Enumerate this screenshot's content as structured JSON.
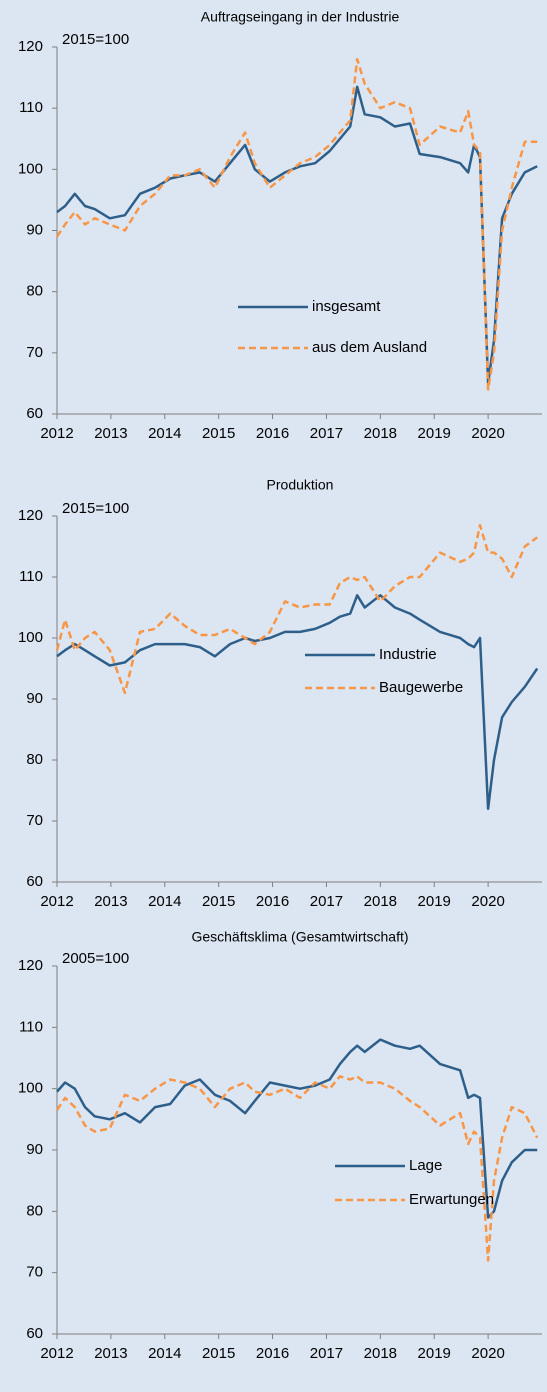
{
  "chart_data": [
    {
      "type": "line",
      "title": "Auftragseingang in der Industrie",
      "annotation": "2015=100",
      "x": [
        2012,
        2012.15,
        2012.33,
        2012.52,
        2012.7,
        2012.98,
        2013.26,
        2013.54,
        2013.82,
        2014.1,
        2014.37,
        2014.65,
        2014.93,
        2015.21,
        2015.49,
        2015.67,
        2015.95,
        2016.23,
        2016.51,
        2016.79,
        2017.06,
        2017.25,
        2017.44,
        2017.57,
        2017.71,
        2018,
        2018.27,
        2018.55,
        2018.73,
        2019.11,
        2019.48,
        2019.63,
        2019.74,
        2019.85,
        2020,
        2020.11,
        2020.26,
        2020.44,
        2020.68,
        2020.91
      ],
      "series": [
        {
          "name": "insgesamt",
          "color": "#2e5f8a",
          "dashed": false,
          "values": [
            93,
            94,
            96,
            94,
            93.5,
            92,
            92.5,
            96,
            97,
            98.5,
            99,
            99.5,
            98,
            101,
            104,
            100,
            98,
            99.5,
            100.5,
            101,
            103,
            105,
            107,
            113.5,
            109,
            108.5,
            107,
            107.5,
            102.5,
            102,
            101,
            99.5,
            104,
            102,
            65,
            72,
            92,
            96,
            99.5,
            100.5
          ]
        },
        {
          "name": "aus dem Ausland",
          "color": "#f79646",
          "dashed": true,
          "values": [
            89,
            91,
            93,
            91,
            92,
            91,
            90,
            94,
            96,
            99,
            99,
            100,
            97,
            102,
            106,
            101,
            97,
            99,
            101,
            102,
            104,
            106,
            108,
            118,
            114,
            110,
            111,
            110,
            104,
            107,
            106,
            109.5,
            104,
            103,
            64,
            70,
            90,
            97,
            104.5,
            104.5
          ]
        }
      ],
      "xlim": [
        2012,
        2021
      ],
      "xticks": [
        2012,
        2013,
        2014,
        2015,
        2016,
        2017,
        2018,
        2019,
        2020
      ],
      "ylim": [
        60,
        120
      ],
      "yticks": [
        60,
        70,
        80,
        90,
        100,
        110,
        120
      ],
      "grid": false,
      "legend": "lower right"
    },
    {
      "type": "line",
      "title": "Produktion",
      "annotation": "2015=100",
      "x": [
        2012,
        2012.15,
        2012.33,
        2012.52,
        2012.7,
        2012.98,
        2013.26,
        2013.54,
        2013.82,
        2014.1,
        2014.37,
        2014.65,
        2014.93,
        2015.21,
        2015.49,
        2015.67,
        2015.95,
        2016.23,
        2016.51,
        2016.79,
        2017.06,
        2017.25,
        2017.44,
        2017.57,
        2017.71,
        2018,
        2018.27,
        2018.55,
        2018.73,
        2019.11,
        2019.48,
        2019.63,
        2019.74,
        2019.85,
        2020,
        2020.11,
        2020.26,
        2020.44,
        2020.68,
        2020.91
      ],
      "series": [
        {
          "name": "Industrie",
          "color": "#2e5f8a",
          "dashed": false,
          "values": [
            97,
            98,
            99,
            98,
            97,
            95.5,
            96,
            98,
            99,
            99,
            99,
            98.5,
            97,
            99,
            100,
            99.5,
            100,
            101,
            101,
            101.5,
            102.5,
            103.5,
            104,
            107,
            105,
            107,
            105,
            104,
            103,
            101,
            100,
            99,
            98.5,
            100,
            72,
            80,
            87,
            89.5,
            92,
            95
          ]
        },
        {
          "name": "Baugewerbe",
          "color": "#f79646",
          "dashed": true,
          "values": [
            98,
            103,
            98,
            100,
            101,
            98,
            91,
            101,
            101.5,
            104,
            102,
            100.5,
            100.5,
            101.5,
            100,
            99,
            101,
            106,
            105,
            105.5,
            105.5,
            109,
            110,
            109.5,
            110,
            106,
            108.5,
            110,
            110,
            114,
            112.5,
            113,
            114,
            118.5,
            114,
            114,
            113,
            110,
            115,
            116.5
          ]
        }
      ],
      "xlim": [
        2012,
        2021
      ],
      "xticks": [
        2012,
        2013,
        2014,
        2015,
        2016,
        2017,
        2018,
        2019,
        2020
      ],
      "ylim": [
        60,
        120
      ],
      "yticks": [
        60,
        70,
        80,
        90,
        100,
        110,
        120
      ],
      "grid": false,
      "legend": "lower right"
    },
    {
      "type": "line",
      "title": "Geschäftsklima (Gesamtwirtschaft)",
      "annotation": "2005=100",
      "x": [
        2012,
        2012.15,
        2012.33,
        2012.52,
        2012.7,
        2012.98,
        2013.26,
        2013.54,
        2013.82,
        2014.1,
        2014.37,
        2014.65,
        2014.93,
        2015.21,
        2015.49,
        2015.67,
        2015.95,
        2016.23,
        2016.51,
        2016.79,
        2017.06,
        2017.25,
        2017.44,
        2017.57,
        2017.71,
        2018,
        2018.27,
        2018.55,
        2018.73,
        2019.11,
        2019.48,
        2019.63,
        2019.74,
        2019.85,
        2020,
        2020.11,
        2020.26,
        2020.44,
        2020.68,
        2020.91
      ],
      "series": [
        {
          "name": "Lage",
          "color": "#2e5f8a",
          "dashed": false,
          "values": [
            99.5,
            101,
            100,
            97,
            95.5,
            95,
            96,
            94.5,
            97,
            97.5,
            100.5,
            101.5,
            99,
            98,
            96,
            98,
            101,
            100.5,
            100,
            100.5,
            101.5,
            104,
            106,
            107,
            106,
            108,
            107,
            106.5,
            107,
            104,
            103,
            98.5,
            99,
            98.5,
            79,
            80,
            85,
            88,
            90,
            90
          ]
        },
        {
          "name": "Erwartungen",
          "color": "#f79646",
          "dashed": true,
          "values": [
            96.5,
            98.5,
            97,
            94,
            93,
            93.5,
            99,
            98,
            100,
            101.5,
            101,
            100,
            97,
            100,
            101,
            99.5,
            99,
            100,
            98.5,
            101,
            100,
            102,
            101.5,
            102,
            101,
            101,
            100,
            98,
            97,
            94,
            96,
            91,
            93,
            92,
            72,
            85,
            92,
            97,
            96,
            92
          ]
        }
      ],
      "xlim": [
        2012,
        2021
      ],
      "xticks": [
        2012,
        2013,
        2014,
        2015,
        2016,
        2017,
        2018,
        2019,
        2020
      ],
      "ylim": [
        60,
        120
      ],
      "yticks": [
        60,
        70,
        80,
        90,
        100,
        110,
        120
      ],
      "grid": false,
      "legend": "lower right"
    }
  ]
}
